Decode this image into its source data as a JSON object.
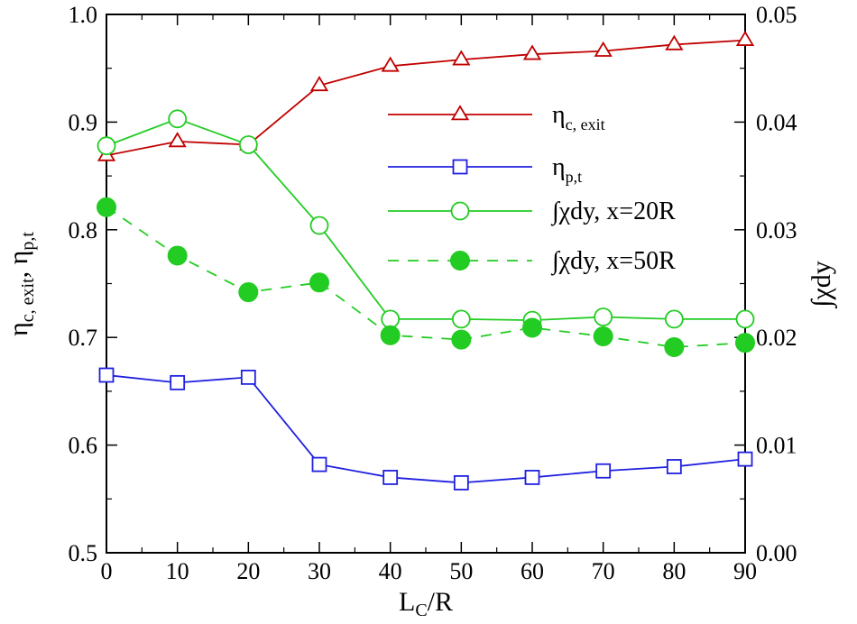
{
  "chart_data": {
    "type": "line",
    "x": [
      0,
      10,
      20,
      30,
      40,
      50,
      60,
      70,
      80,
      90
    ],
    "xlabel": {
      "base": "L",
      "sub": "C",
      "tail": "/R"
    },
    "ylabel_left": {
      "part1": "η",
      "sub1": "c, exit",
      "sep": ", ",
      "part2": "η",
      "sub2": "p,t"
    },
    "ylabel_right": "∫χdy",
    "xlim": [
      0,
      90
    ],
    "ylim_left": [
      0.5,
      1.0
    ],
    "ylim_right": [
      0.0,
      0.05
    ],
    "xticks": [
      "0",
      "10",
      "20",
      "30",
      "40",
      "50",
      "60",
      "70",
      "80",
      "90"
    ],
    "yticks_left": [
      "0.5",
      "0.6",
      "0.7",
      "0.8",
      "0.9",
      "1.0"
    ],
    "yticks_right": [
      "0.00",
      "0.01",
      "0.02",
      "0.03",
      "0.04",
      "0.05"
    ],
    "grid": false,
    "legend_position": "center-right",
    "series": [
      {
        "name": "η",
        "name_sub": "c, exit",
        "axis": "left",
        "color": "#c00000",
        "marker": "triangle-open",
        "dash": "solid",
        "values": [
          0.869,
          0.882,
          0.879,
          0.934,
          0.952,
          0.958,
          0.963,
          0.966,
          0.972,
          0.976
        ]
      },
      {
        "name": "η",
        "name_sub": "p,t",
        "axis": "left",
        "color": "#2020e0",
        "marker": "square-open",
        "dash": "solid",
        "values": [
          0.665,
          0.658,
          0.663,
          0.582,
          0.57,
          0.565,
          0.57,
          0.576,
          0.58,
          0.587
        ]
      },
      {
        "name": "∫χdy, x=20R",
        "axis": "right",
        "color": "#22cc22",
        "marker": "circle-open",
        "dash": "solid",
        "values": [
          0.0378,
          0.0403,
          0.0379,
          0.0304,
          0.0217,
          0.0217,
          0.0216,
          0.0219,
          0.0217,
          0.0217
        ]
      },
      {
        "name": "∫χdy, x=50R",
        "axis": "right",
        "color": "#22cc22",
        "marker": "circle-filled",
        "dash": "dashed",
        "values": [
          0.0321,
          0.0276,
          0.0242,
          0.0251,
          0.0202,
          0.0198,
          0.0209,
          0.0201,
          0.0191,
          0.0195
        ]
      }
    ]
  }
}
